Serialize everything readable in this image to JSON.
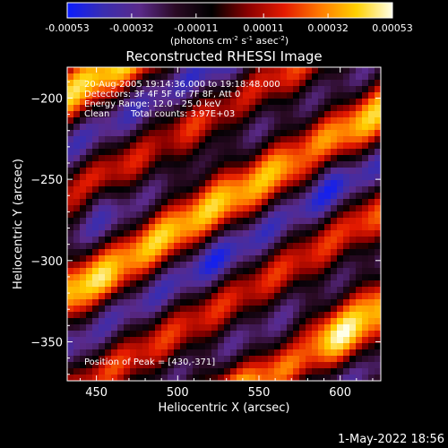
{
  "chart_data": {
    "type": "heatmap",
    "title": "Reconstructed RHESSI Image",
    "xlabel": "Heliocentric X (arcsec)",
    "ylabel": "Heliocentric Y (arcsec)",
    "xlim": [
      432,
      625
    ],
    "ylim": [
      -374,
      -181
    ],
    "x_ticks": [
      450,
      500,
      550,
      600
    ],
    "y_ticks": [
      -200,
      -250,
      -300,
      -350
    ],
    "colorbar": {
      "range": [
        -0.00053,
        0.00053
      ],
      "tick_values": [
        -0.00053,
        -0.00032,
        -0.00011,
        0.00011,
        0.00032,
        0.00053
      ],
      "tick_labels": [
        "-0.00053",
        "-0.00032",
        "-0.00011",
        "0.00011",
        "0.00032",
        "0.00053"
      ],
      "unit_main": "(photons cm",
      "unit_exp1": "-2",
      "unit_mid": " s",
      "unit_exp2": "-1",
      "unit_end": " asec",
      "unit_exp3": "-2",
      "unit_close": ")"
    },
    "annotations": {
      "time": "20-Aug-2005 19:14:36.000 to 19:18:48.000",
      "detectors": "Detectors: 3F 4F 5F 6F 7F 8F, Att 0",
      "energy": "Energy Range: 12.0 - 25.0 keV",
      "clean_label": "Clean",
      "counts": "Total counts: 3.97E+03",
      "peak": "Position of Peak = [430,-371]"
    },
    "colormap": [
      "#0a1cff",
      "#3a2db0",
      "#5a2a8a",
      "#2a0a24",
      "#000000",
      "#8a0000",
      "#e41a00",
      "#ff7a00",
      "#ffd000",
      "#ffffe8"
    ]
  },
  "footer": {
    "date": "1-May-2022 18:56"
  }
}
